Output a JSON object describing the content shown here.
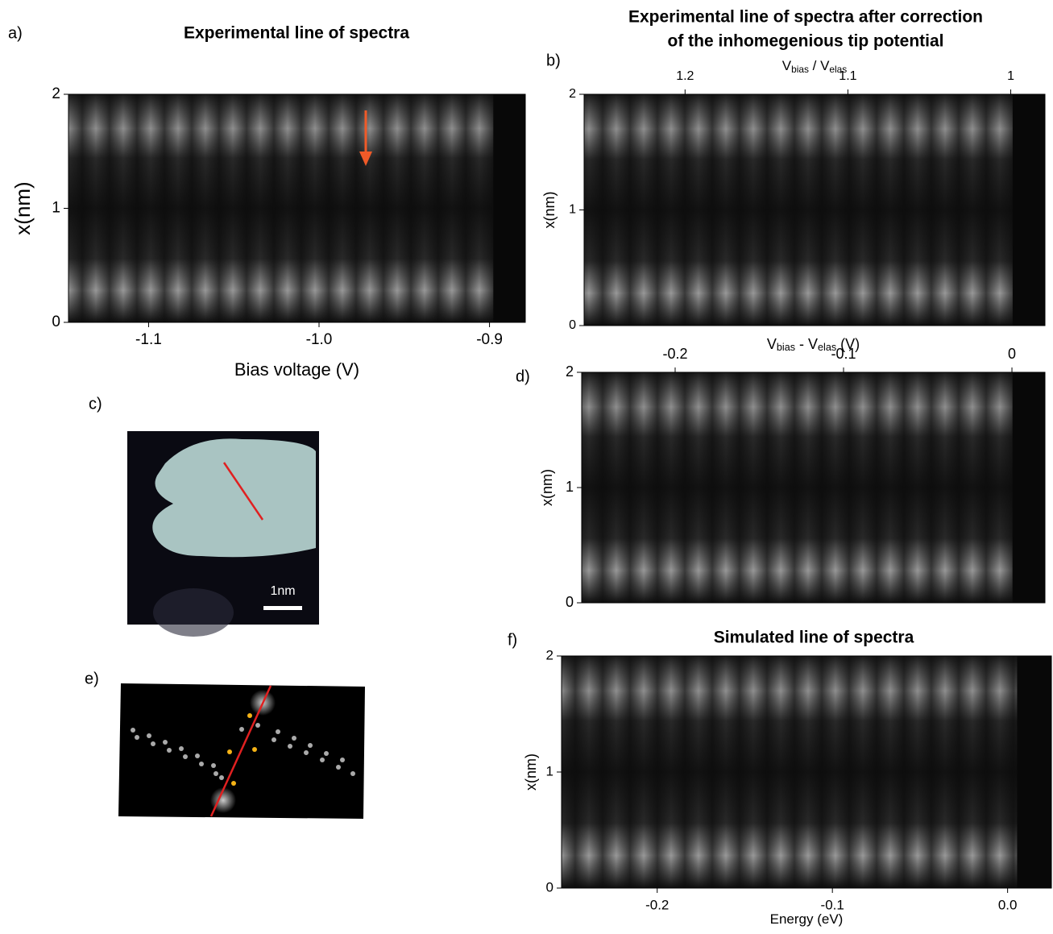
{
  "chart_data": [
    {
      "type": "heatmap",
      "panel": "a)",
      "title": [
        "Experimental line of spectra"
      ],
      "xaxis": "bottom",
      "xlabel": [
        "Bias voltage (V)"
      ],
      "xlim": [
        -1.147,
        -0.879
      ],
      "xticks": [
        -1.1,
        {
          "value": -1.0,
          "label": "-1.0"
        },
        -0.9
      ],
      "ylabel": "x(nm)",
      "ylim": [
        0,
        2
      ],
      "yticks": [
        0,
        1,
        2
      ],
      "colormap": "gray"
    },
    {
      "type": "heatmap",
      "panel": "b)",
      "title": [
        "Experimental line of spectra after correction",
        "of the inhomegenious tip potential"
      ],
      "xaxis": "top",
      "xlabel": [
        "V",
        "bias",
        " / V",
        "elas"
      ],
      "xlim": [
        1.262,
        0.979
      ],
      "xticks": [
        1.2,
        1.1,
        1
      ],
      "ylabel": "x(nm)",
      "ylim": [
        0,
        2
      ],
      "yticks": [
        0,
        1,
        2
      ],
      "colormap": "gray"
    },
    {
      "type": "heatmap",
      "panel": "d)",
      "title": [],
      "xaxis": "top",
      "xlabel": [
        "V",
        "bias",
        " - V",
        "elas",
        " (V)"
      ],
      "xlim": [
        -0.2555,
        0.0196
      ],
      "xticks": [
        -0.2,
        -0.1,
        0
      ],
      "ylabel": "x(nm)",
      "ylim": [
        0,
        2
      ],
      "yticks": [
        0,
        1,
        2
      ],
      "colormap": "gray"
    },
    {
      "type": "heatmap",
      "panel": "f)",
      "title": [
        "Simulated line of spectra"
      ],
      "xaxis": "bottom",
      "xlabel": [
        "Energy (eV)"
      ],
      "xlim": [
        -0.2546,
        0.025
      ],
      "xticks": [
        -0.2,
        -0.1,
        {
          "value": 0.0,
          "label": "0.0"
        }
      ],
      "ylabel": "x(nm)",
      "ylim": [
        0,
        2
      ],
      "yticks": [
        0,
        1,
        2
      ],
      "colormap": "gray"
    }
  ],
  "images": {
    "c": {
      "panel": "c)",
      "scale_bar": "1nm"
    },
    "e": {
      "panel": "e)"
    }
  }
}
